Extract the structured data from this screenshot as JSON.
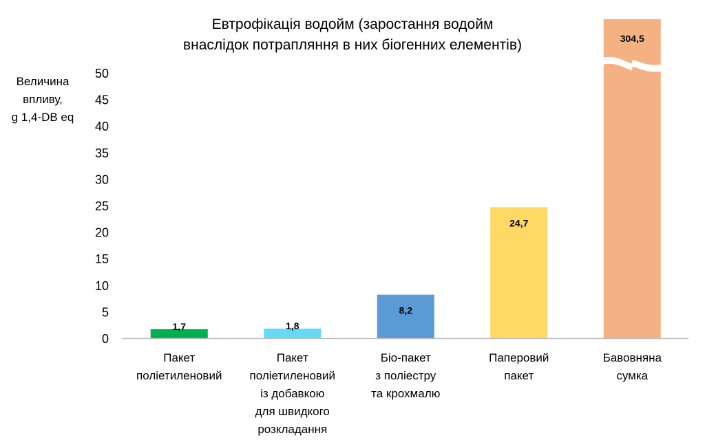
{
  "chart_data": {
    "type": "bar",
    "title": [
      "Евтрофікація водойм (заростання водойм",
      "внаслідок потрапляння в них біогенних елементів)"
    ],
    "ylabel": [
      "Величина",
      "впливу,",
      "g 1,4-DB eq"
    ],
    "ylim": [
      0,
      50
    ],
    "yticks": [
      0,
      5,
      10,
      15,
      20,
      25,
      30,
      35,
      40,
      45,
      50
    ],
    "axis_break": true,
    "categories": [
      [
        "Пакет",
        "поліетиленовий"
      ],
      [
        "Пакет",
        "поліетиленовий",
        "із добавкою",
        "для швидкого",
        "розкладання"
      ],
      [
        "Біо-пакет",
        "з поліестру",
        "та крохмалю"
      ],
      [
        "Паперовий",
        "пакет"
      ],
      [
        "Бавовняна",
        "сумка"
      ]
    ],
    "values": [
      1.7,
      1.8,
      8.2,
      24.7,
      304.5
    ],
    "data_labels": [
      "1,7",
      "1,8",
      "8,2",
      "24,7",
      "304,5"
    ],
    "colors": [
      "#00b050",
      "#66d9f5",
      "#5b9bd5",
      "#ffd966",
      "#f4b183"
    ]
  }
}
